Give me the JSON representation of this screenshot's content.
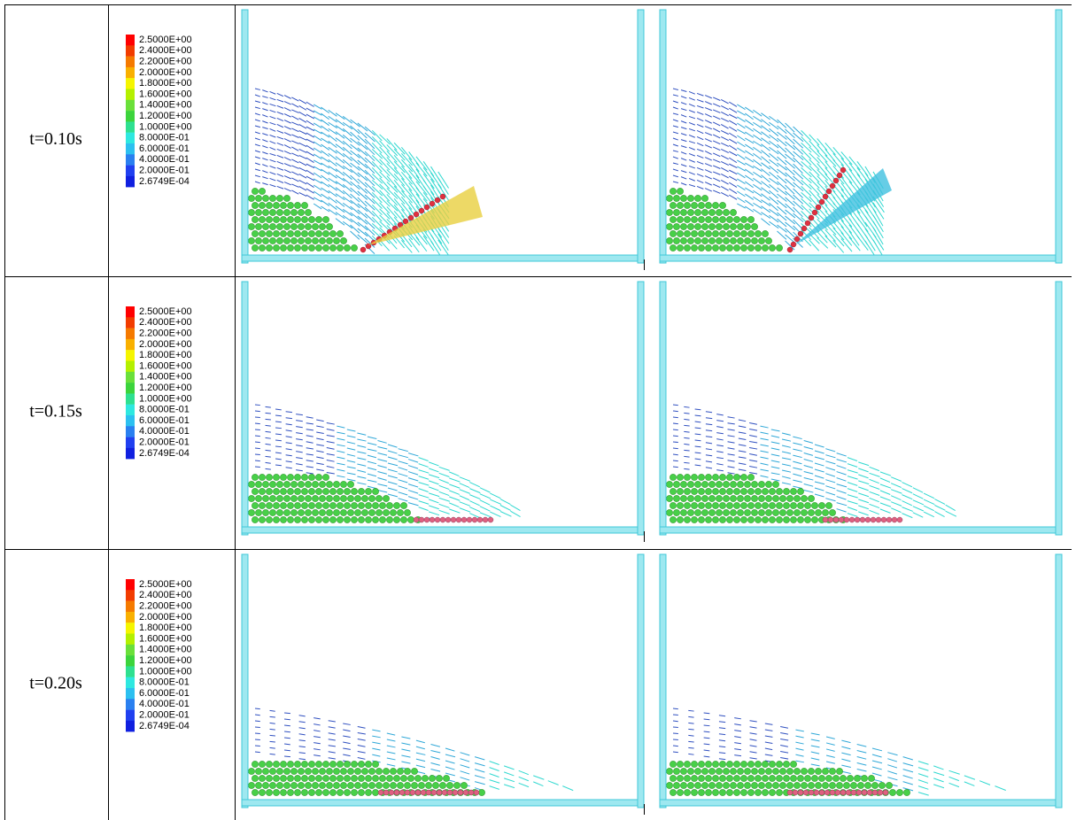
{
  "table": {
    "rows": [
      {
        "time": "t=0.10s",
        "legend": [
          "2.5000E+00",
          "2.4000E+00",
          "2.2000E+00",
          "2.0000E+00",
          "1.8000E+00",
          "1.6000E+00",
          "1.4000E+00",
          "1.2000E+00",
          "1.0000E+00",
          "8.0000E-01",
          "6.0000E-01",
          "4.0000E-01",
          "2.0000E-01",
          "2.6749E-04"
        ]
      },
      {
        "time": "t=0.15s",
        "legend": [
          "2.5000E+00",
          "2.4000E+00",
          "2.2000E+00",
          "2.0000E+00",
          "1.8000E+00",
          "1.6000E+00",
          "1.4000E+00",
          "1.2000E+00",
          "1.0000E+00",
          "8.0000E-01",
          "6.0000E-01",
          "4.0000E-01",
          "2.0000E-01",
          "2.6749E-04"
        ]
      },
      {
        "time": "t=0.20s",
        "legend": [
          "2.5000E+00",
          "2.4000E+00",
          "2.2000E+00",
          "2.0000E+00",
          "1.8000E+00",
          "1.6000E+00",
          "1.4000E+00",
          "1.2000E+00",
          "1.0000E+00",
          "8.0000E-01",
          "6.0000E-01",
          "4.0000E-01",
          "2.0000E-01",
          "2.6749E-04"
        ]
      }
    ]
  }
}
